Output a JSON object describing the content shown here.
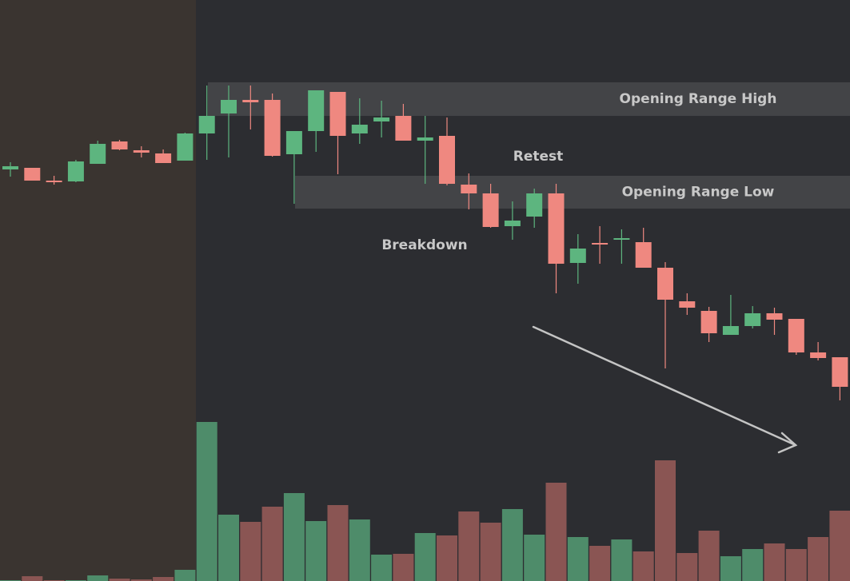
{
  "chart_data": {
    "type": "candlestick",
    "categories": [
      null,
      null,
      null,
      null,
      null,
      null,
      null,
      null,
      null,
      null,
      null,
      null,
      null,
      null,
      null,
      null,
      null,
      null,
      null,
      null,
      null,
      null,
      null,
      null,
      null,
      null,
      null,
      null,
      null,
      null,
      null,
      null,
      null,
      null,
      null,
      null,
      null,
      null,
      null
    ],
    "open": [
      515,
      517,
      501,
      500,
      522,
      550,
      539,
      535,
      526,
      560,
      585,
      602,
      602,
      534,
      563,
      612,
      560,
      575,
      582,
      551,
      557,
      496,
      485,
      444,
      456,
      485,
      398,
      423,
      427,
      424,
      392,
      350,
      338,
      308,
      319,
      335,
      328,
      286,
      280
    ],
    "high": [
      524,
      517,
      507,
      527,
      551,
      552,
      544,
      540,
      561,
      620,
      620,
      620,
      610,
      563,
      614,
      612,
      604,
      601,
      597,
      582,
      580,
      510,
      497,
      475,
      491,
      497,
      434,
      444,
      440,
      442,
      399,
      360,
      343,
      358,
      344,
      342,
      328,
      299,
      280
    ],
    "low": [
      506,
      501,
      496,
      499,
      522,
      539,
      530,
      523,
      526,
      527,
      530,
      565,
      531,
      472,
      537,
      509,
      547,
      555,
      551,
      497,
      495,
      465,
      442,
      427,
      442,
      360,
      372,
      397,
      397,
      392,
      266,
      333,
      299,
      308,
      316,
      308,
      283,
      276,
      226
    ],
    "close": [
      519,
      501,
      499,
      525,
      547,
      540,
      536,
      523,
      560,
      582,
      602,
      599,
      532,
      563,
      614,
      557,
      571,
      580,
      551,
      555,
      497,
      485,
      443,
      451,
      485,
      397,
      416,
      421,
      429,
      392,
      352,
      342,
      310,
      319,
      335,
      327,
      286,
      279,
      243
    ],
    "volume": [
      1,
      6,
      1,
      1,
      7,
      3,
      2,
      5,
      14,
      199,
      83,
      74,
      93,
      110,
      75,
      95,
      77,
      33,
      34,
      60,
      57,
      87,
      73,
      90,
      58,
      123,
      55,
      44,
      52,
      37,
      151,
      35,
      63,
      31,
      40,
      47,
      40,
      55,
      88
    ],
    "ylim": [
      0,
      727
    ],
    "volume_ylim": [
      0,
      727
    ],
    "up_color": "#5db57f",
    "down_color": "#ef8880",
    "volume_up_color": "#4e8c6a",
    "volume_down_color": "#8a5553",
    "zones": [
      {
        "label": "Opening Range High",
        "from": 582,
        "to": 624
      },
      {
        "label": "Opening Range Low",
        "from": 466,
        "to": 507
      }
    ],
    "annotations": [
      "Breakdown",
      "Retest"
    ]
  }
}
